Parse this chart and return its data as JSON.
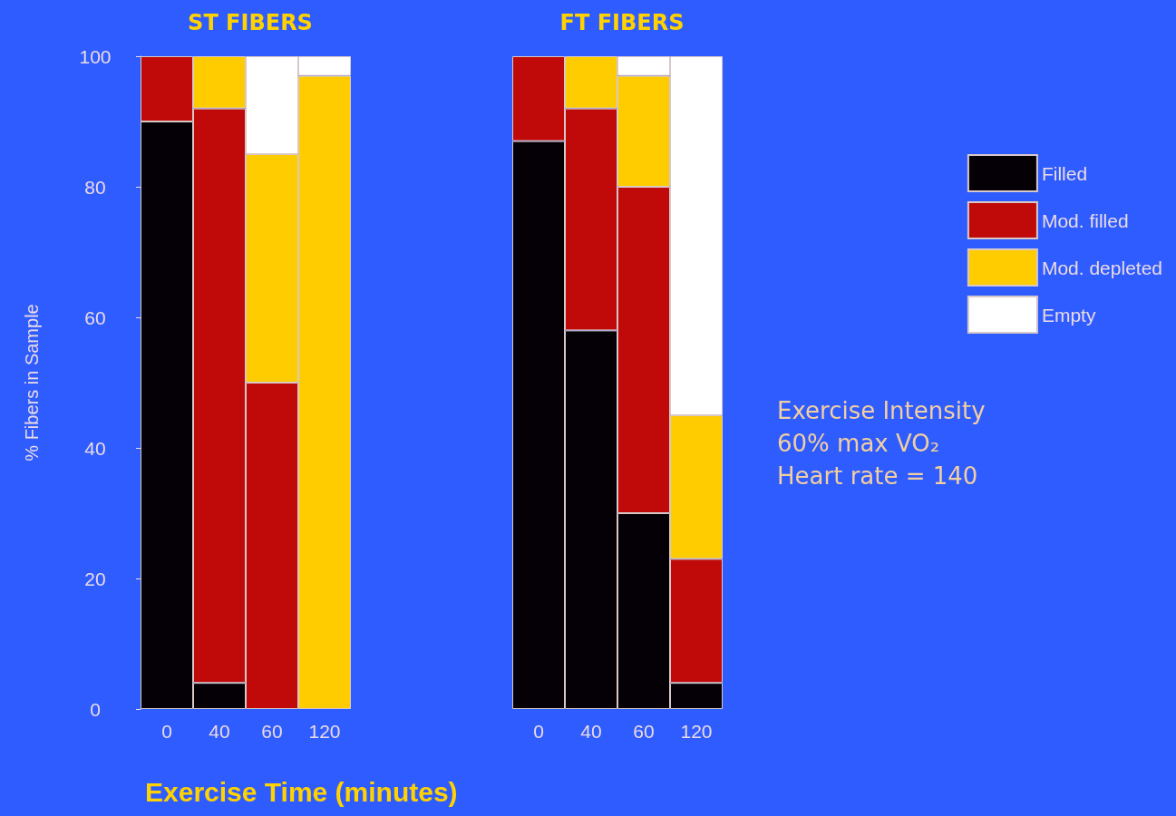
{
  "chart_data": [
    {
      "type": "bar",
      "title": "ST FIBERS",
      "xlabel": "Exercise Time (minutes)",
      "ylabel": "% Fibers in Sample",
      "categories": [
        "0",
        "40",
        "60",
        "120"
      ],
      "stacked": true,
      "ylim": [
        0,
        100
      ],
      "yticks": [
        0,
        20,
        40,
        60,
        80,
        100
      ],
      "grid": false,
      "series": [
        {
          "color": "#050005",
          "values": [
            90,
            4,
            0,
            0
          ]
        },
        {
          "color": "#c00a0a",
          "values": [
            10,
            88,
            50,
            0
          ]
        },
        {
          "color": "#ffcc00",
          "values": [
            0,
            8,
            35,
            97
          ]
        },
        {
          "color": "#ffffff",
          "values": [
            0,
            0,
            15,
            3
          ]
        }
      ]
    },
    {
      "type": "bar",
      "title": "FT FIBERS",
      "categories": [
        "0",
        "40",
        "60",
        "120"
      ],
      "stacked": true,
      "ylim": [
        0,
        100
      ],
      "tick_labels": "x",
      "grid": false,
      "legend": "right",
      "annotations": [
        "Exercise Intensity",
        "60% max VO₂",
        "Heart rate = 140"
      ],
      "series": [
        {
          "name": "Filled",
          "color": "#050005",
          "values": [
            87,
            58,
            30,
            4
          ]
        },
        {
          "name": "Mod. filled",
          "color": "#c00a0a",
          "values": [
            13,
            34,
            50,
            19
          ]
        },
        {
          "name": "Mod. depleted",
          "color": "#ffcc00",
          "values": [
            0,
            8,
            17,
            22
          ]
        },
        {
          "name": "Empty",
          "color": "#ffffff",
          "values": [
            0,
            0,
            3,
            55
          ]
        }
      ]
    }
  ]
}
